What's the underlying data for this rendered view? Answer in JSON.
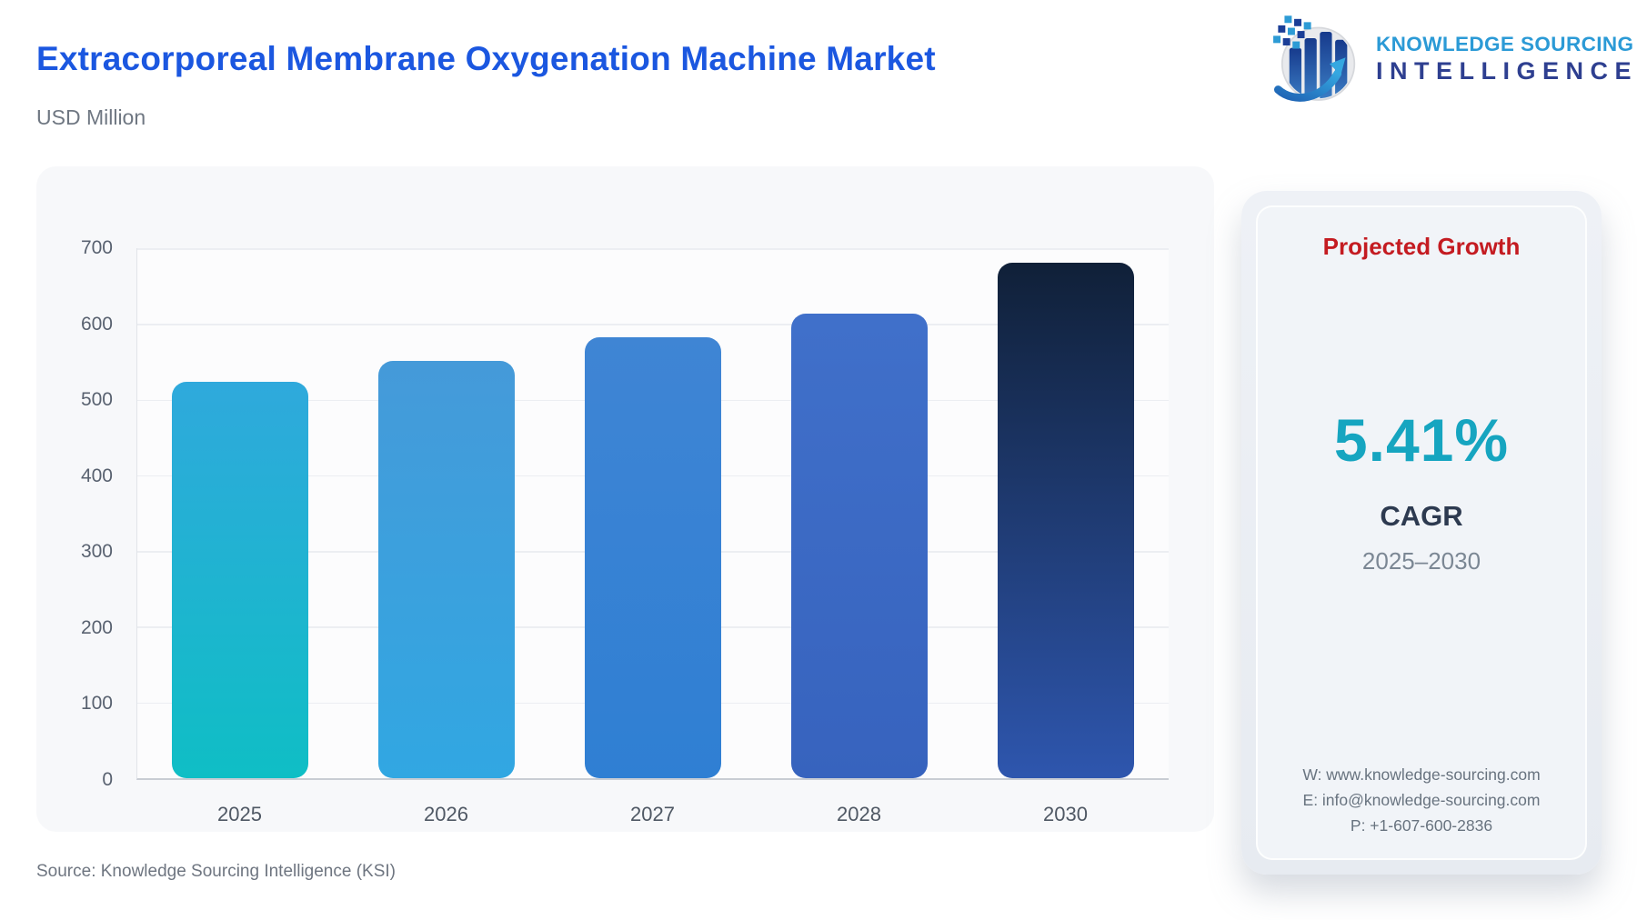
{
  "header": {
    "title": "Extracorporeal Membrane Oxygenation Machine Market",
    "subtitle": "USD Million",
    "logo": {
      "line1": "KNOWLEDGE SOURCING",
      "line2": "INTELLIGENCE"
    }
  },
  "chart_data": {
    "type": "bar",
    "title": "Extracorporeal Membrane Oxygenation Machine Market",
    "unit": "USD Million",
    "categories": [
      "2025",
      "2026",
      "2027",
      "2028",
      "2030"
    ],
    "values": [
      523,
      551,
      582,
      613,
      681
    ],
    "xlabel": "",
    "ylabel": "USD Million",
    "ylim": [
      0,
      700
    ],
    "ytick_step": 100,
    "grid": true,
    "legend": "none",
    "bar_gradients": [
      [
        "#2fa9dc",
        "#0fbec5"
      ],
      [
        "#459ad9",
        "#31a7e2"
      ],
      [
        "#3f85d4",
        "#2f7fd3"
      ],
      [
        "#4070ca",
        "#3763be"
      ],
      [
        "#102038",
        "#2e56ae"
      ]
    ]
  },
  "panel": {
    "title": "Projected Growth",
    "value": "5.41%",
    "label": "CAGR",
    "period": "2025–2030",
    "contact": {
      "website": "W: www.knowledge-sourcing.com",
      "email": "E: info@knowledge-sourcing.com",
      "phone": "P: +1-607-600-2836"
    }
  },
  "footer": {
    "source": "Source: Knowledge Sourcing Intelligence (KSI)"
  },
  "colors": {
    "title_blue": "#1b57e0",
    "panel_title_red": "#c41b21",
    "cagr_teal": "#16a5c0",
    "cagr_navy": "#2d3a50",
    "card_background": "#f7f8fa",
    "logo_light_blue": "#2b9ad6",
    "logo_dark_blue": "#2e3f90"
  }
}
